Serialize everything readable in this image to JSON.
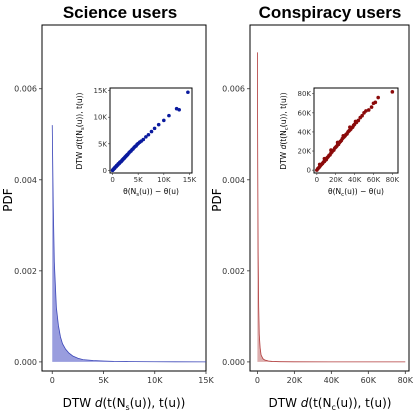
{
  "chart_data": [
    {
      "type": "area",
      "title": "Science users",
      "xlabel": "DTW d(t(N_s(u)), t(u))",
      "ylabel": "PDF",
      "xlim": [
        -1000,
        15000
      ],
      "ylim": [
        -0.0002,
        0.0074
      ],
      "xticks": [
        0,
        5000,
        10000,
        15000
      ],
      "xtick_labels": [
        "0",
        "5K",
        "10K",
        "15K"
      ],
      "yticks": [
        0,
        0.002,
        0.004,
        0.006
      ],
      "ytick_labels": [
        "0.000",
        "0.002",
        "0.004",
        "0.006"
      ],
      "fill_color": "#7f84d6",
      "line_color": "#3b46b8",
      "series": [
        {
          "x": [
            0,
            100,
            200,
            400,
            600,
            800,
            1000,
            1300,
            1600,
            2000,
            2500,
            3000,
            4000,
            5000,
            6000,
            8000,
            10000,
            12000,
            15000
          ],
          "values": [
            0.0052,
            0.0034,
            0.0022,
            0.0012,
            0.0008,
            0.00055,
            0.0004,
            0.00028,
            0.0002,
            0.00013,
            8e-05,
            5e-05,
            3e-05,
            2e-05,
            1.2e-05,
            6e-06,
            3e-06,
            2e-06,
            1e-06
          ]
        }
      ],
      "inset": {
        "type": "scatter",
        "xlabel": "θ(N_s(u)) − θ(u)",
        "ylabel": "DTW d(t(N_s(u)), t(u))",
        "xlim": [
          -500,
          15500
        ],
        "ylim": [
          -500,
          15500
        ],
        "xticks": [
          0,
          5000,
          10000,
          15000
        ],
        "xtick_labels": [
          "0",
          "5K",
          "10K",
          "15K"
        ],
        "yticks": [
          0,
          5000,
          10000,
          15000
        ],
        "ytick_labels": [
          "0",
          "5K",
          "10K",
          "15K"
        ],
        "point_color": "#0a1a9e",
        "points": [
          [
            0,
            0
          ],
          [
            100,
            150
          ],
          [
            200,
            200
          ],
          [
            300,
            350
          ],
          [
            400,
            400
          ],
          [
            500,
            600
          ],
          [
            600,
            650
          ],
          [
            700,
            700
          ],
          [
            800,
            900
          ],
          [
            900,
            950
          ],
          [
            1000,
            1000
          ],
          [
            1100,
            1200
          ],
          [
            1200,
            1250
          ],
          [
            1300,
            1300
          ],
          [
            1400,
            1500
          ],
          [
            1500,
            1550
          ],
          [
            1600,
            1600
          ],
          [
            1700,
            1700
          ],
          [
            1800,
            1800
          ],
          [
            1900,
            1950
          ],
          [
            2000,
            2000
          ],
          [
            2100,
            2150
          ],
          [
            2200,
            2250
          ],
          [
            2300,
            2300
          ],
          [
            2400,
            2450
          ],
          [
            2500,
            2550
          ],
          [
            2600,
            2650
          ],
          [
            2700,
            2750
          ],
          [
            2800,
            2850
          ],
          [
            2900,
            2950
          ],
          [
            3000,
            3050
          ],
          [
            3200,
            3300
          ],
          [
            3400,
            3500
          ],
          [
            3600,
            3650
          ],
          [
            3800,
            3900
          ],
          [
            4000,
            4050
          ],
          [
            4200,
            4300
          ],
          [
            4400,
            4500
          ],
          [
            4600,
            4600
          ],
          [
            4800,
            4900
          ],
          [
            5000,
            5050
          ],
          [
            5300,
            5300
          ],
          [
            5600,
            5500
          ],
          [
            6000,
            5800
          ],
          [
            6500,
            6300
          ],
          [
            7000,
            6700
          ],
          [
            7600,
            7300
          ],
          [
            8200,
            7900
          ],
          [
            9000,
            8600
          ],
          [
            10000,
            9400
          ],
          [
            11000,
            10300
          ],
          [
            12500,
            11600
          ],
          [
            13000,
            11400
          ],
          [
            14700,
            14700
          ]
        ]
      }
    },
    {
      "type": "area",
      "title": "Conspiracy users",
      "xlabel": "DTW d(t(N_c(u)), t(u))",
      "ylabel": "PDF",
      "xlim": [
        -4000,
        82000
      ],
      "ylim": [
        -0.0002,
        0.0074
      ],
      "xticks": [
        0,
        20000,
        40000,
        60000,
        80000
      ],
      "xtick_labels": [
        "0",
        "20K",
        "40K",
        "60K",
        "80K"
      ],
      "yticks": [
        0,
        0.002,
        0.004,
        0.006
      ],
      "ytick_labels": [
        "0.000",
        "0.002",
        "0.004",
        "0.006"
      ],
      "fill_color": "#d49a9a",
      "line_color": "#b03a3a",
      "series": [
        {
          "x": [
            0,
            200,
            400,
            700,
            1000,
            1500,
            2000,
            3000,
            4000,
            6000,
            8000,
            12000,
            20000,
            40000,
            60000,
            80000
          ],
          "values": [
            0.0068,
            0.0042,
            0.0024,
            0.0012,
            0.0006,
            0.0003,
            0.00015,
            7e-05,
            4e-05,
            2e-05,
            1e-05,
            5e-06,
            2e-06,
            1e-06,
            5e-07,
            2e-07
          ]
        }
      ],
      "inset": {
        "type": "scatter",
        "xlabel": "θ(N_c(u)) − θ(u)",
        "ylabel": "DTW d(t(N_c(u)), t(u))",
        "xlim": [
          -3000,
          86000
        ],
        "ylim": [
          -3000,
          86000
        ],
        "xticks": [
          0,
          20000,
          40000,
          60000,
          80000
        ],
        "xtick_labels": [
          "0",
          "20K",
          "40K",
          "60K",
          "80K"
        ],
        "yticks": [
          0,
          20000,
          40000,
          60000,
          80000
        ],
        "ytick_labels": [
          "0",
          "20K",
          "40K",
          "60K",
          "80K"
        ],
        "point_color": "#8b0a0a",
        "points": [
          [
            0,
            0
          ],
          [
            1000,
            1500
          ],
          [
            2000,
            2500
          ],
          [
            3000,
            3500
          ],
          [
            4000,
            5000
          ],
          [
            5000,
            6000
          ],
          [
            6000,
            7000
          ],
          [
            7000,
            8500
          ],
          [
            8000,
            9000
          ],
          [
            9000,
            10500
          ],
          [
            10000,
            11000
          ],
          [
            11000,
            13000
          ],
          [
            12000,
            14000
          ],
          [
            13000,
            15500
          ],
          [
            14000,
            16000
          ],
          [
            15000,
            18000
          ],
          [
            16000,
            19000
          ],
          [
            17000,
            20500
          ],
          [
            18000,
            21000
          ],
          [
            19000,
            23000
          ],
          [
            20000,
            24000
          ],
          [
            21000,
            25000
          ],
          [
            22000,
            26500
          ],
          [
            23000,
            27000
          ],
          [
            24000,
            29000
          ],
          [
            25000,
            30000
          ],
          [
            26000,
            31000
          ],
          [
            27000,
            33000
          ],
          [
            28000,
            34000
          ],
          [
            29000,
            35000
          ],
          [
            30000,
            36000
          ],
          [
            31000,
            37500
          ],
          [
            32000,
            38000
          ],
          [
            33000,
            40000
          ],
          [
            34000,
            41000
          ],
          [
            35000,
            42000
          ],
          [
            36000,
            43000
          ],
          [
            37000,
            44500
          ],
          [
            38000,
            45000
          ],
          [
            39000,
            47000
          ],
          [
            40000,
            48000
          ],
          [
            42000,
            50000
          ],
          [
            44000,
            52000
          ],
          [
            46000,
            55000
          ],
          [
            48000,
            57000
          ],
          [
            50000,
            60000
          ],
          [
            52000,
            62000
          ],
          [
            55000,
            63000
          ],
          [
            58000,
            66000
          ],
          [
            60000,
            70000
          ],
          [
            62000,
            71000
          ],
          [
            65000,
            76000
          ],
          [
            80000,
            82000
          ],
          [
            3000,
            6000
          ],
          [
            8000,
            12000
          ],
          [
            15000,
            21000
          ],
          [
            22000,
            29000
          ],
          [
            28000,
            36000
          ],
          [
            35000,
            45000
          ],
          [
            41000,
            51000
          ]
        ]
      }
    }
  ]
}
